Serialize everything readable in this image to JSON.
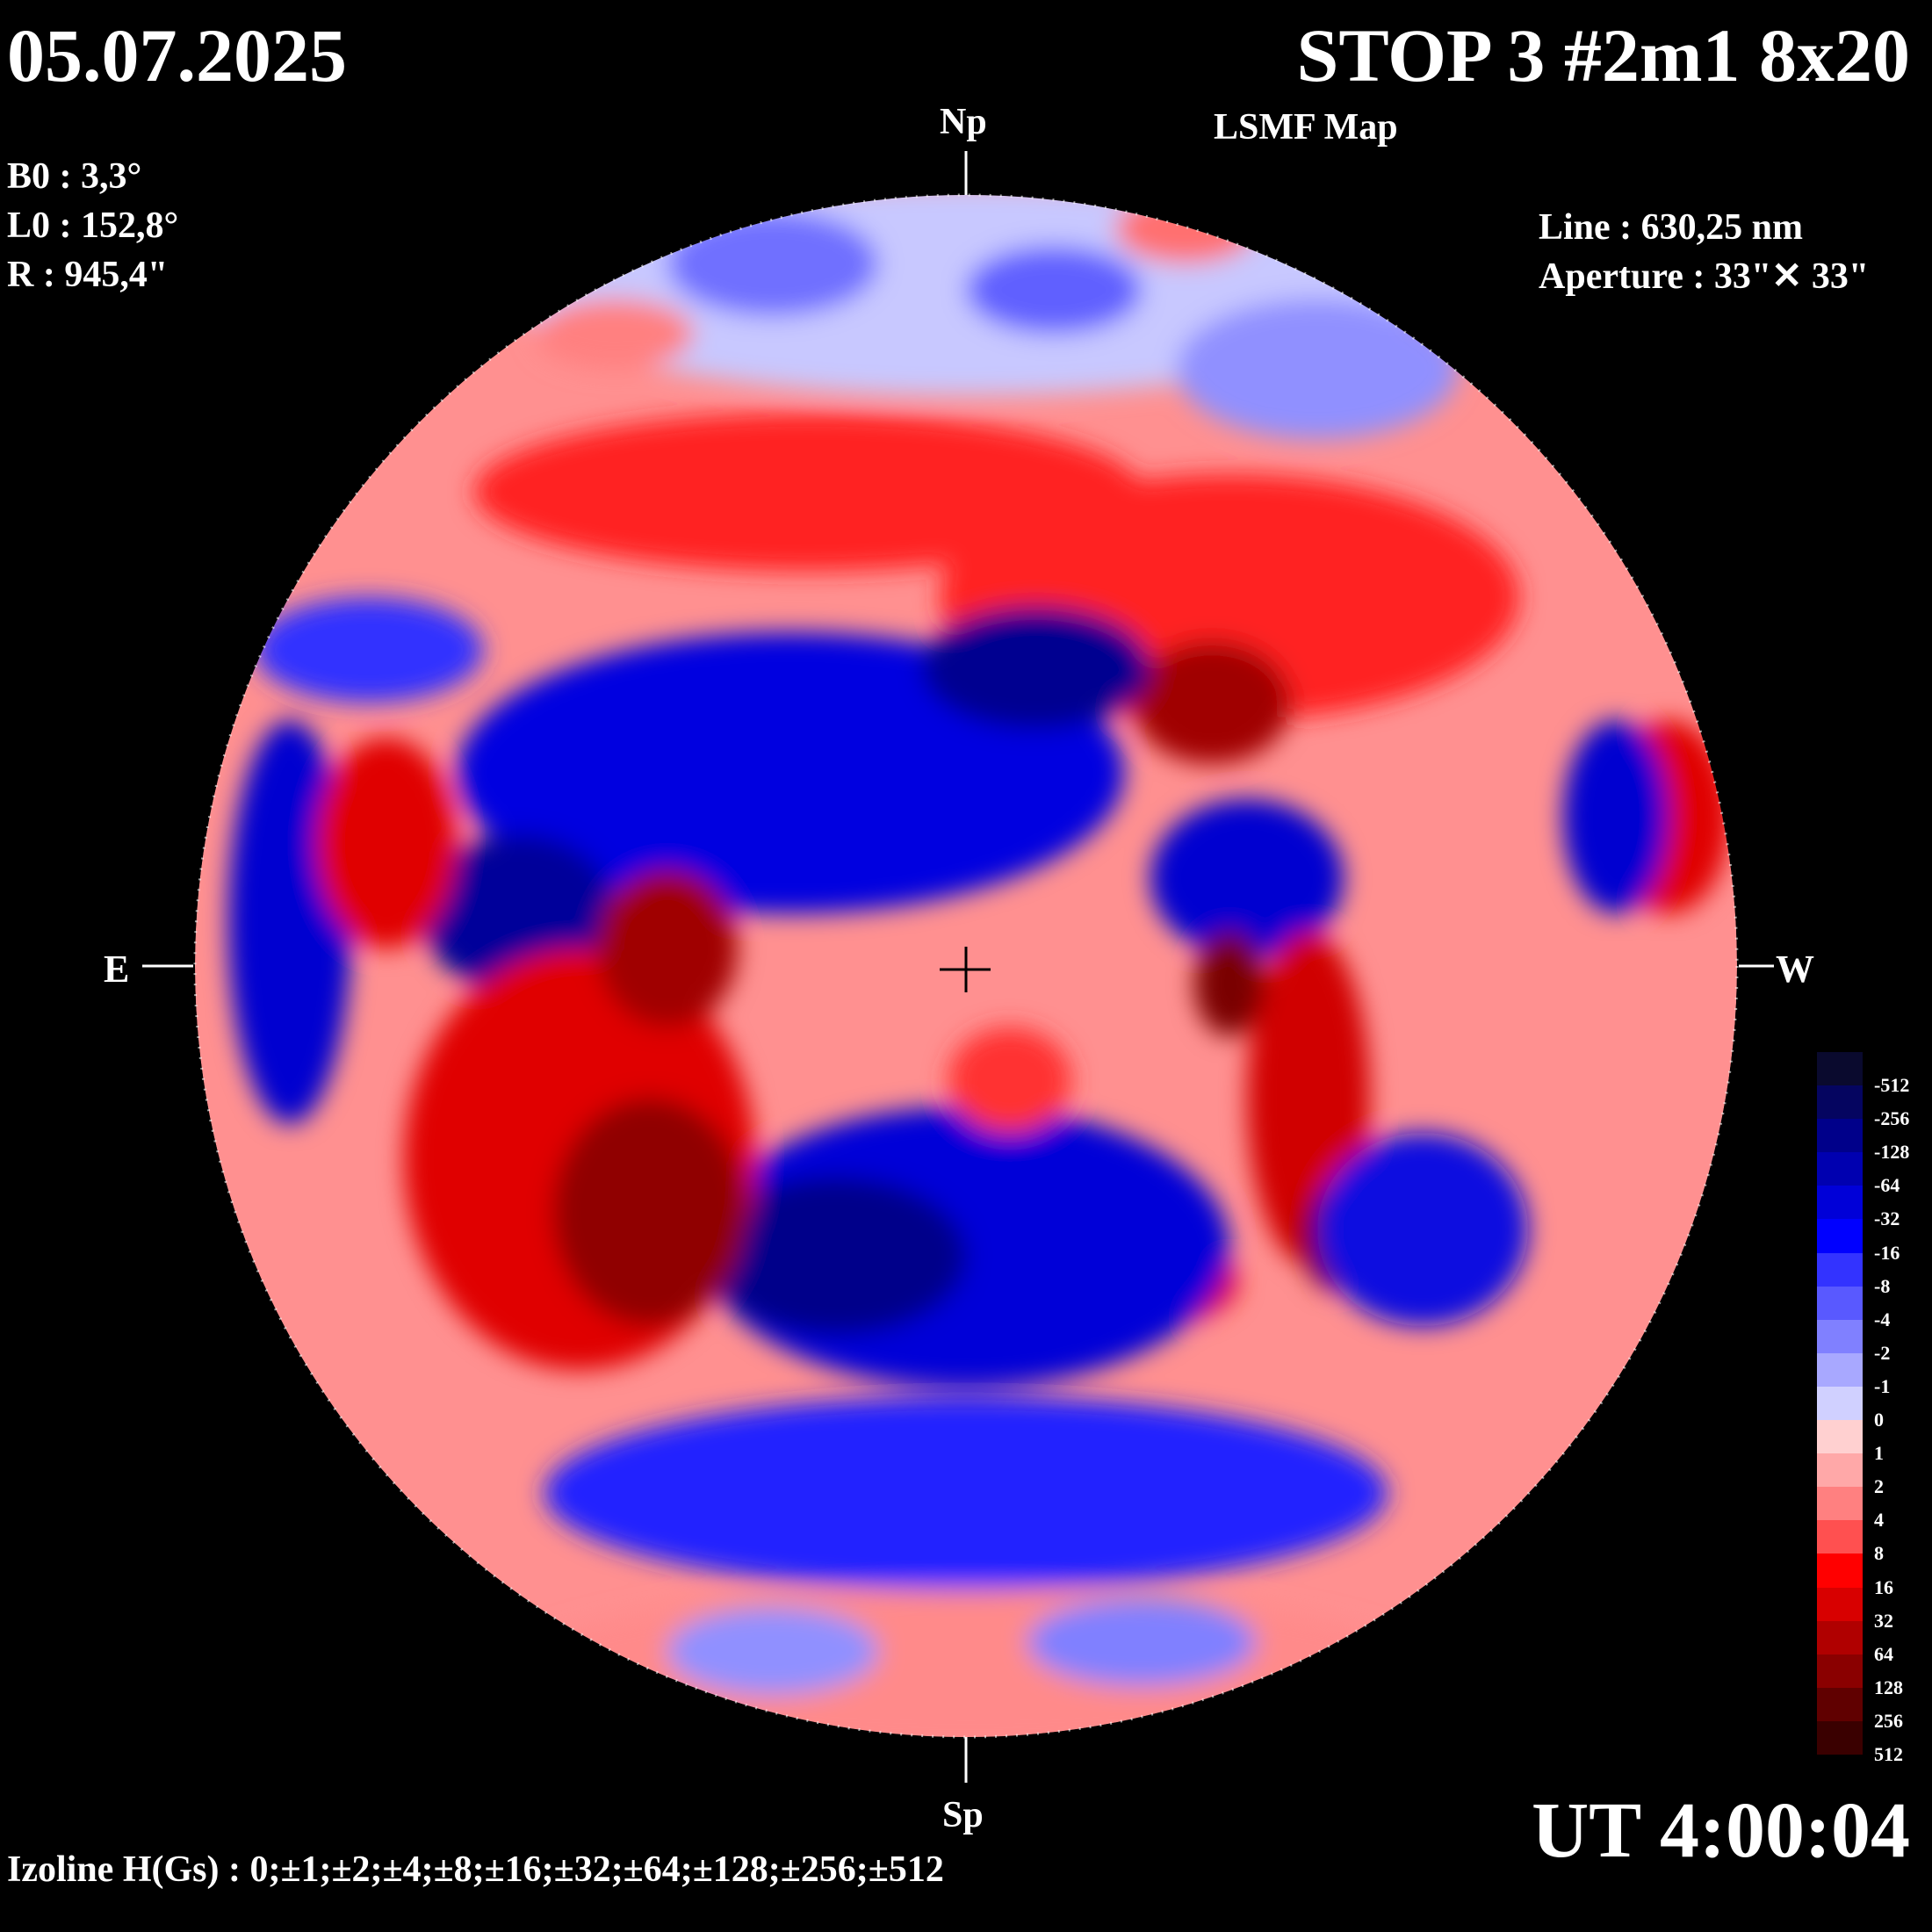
{
  "header": {
    "date": "05.07.2025",
    "title": "STOP 3 #2m1 8x20",
    "subtitle": "LSMF  Map"
  },
  "parameters": {
    "b0": "B0 : 3,3°",
    "l0": "L0 : 152,8°",
    "r": "R  : 945,4\""
  },
  "observation": {
    "line": "Line :  630,25 nm",
    "aperture": "Aperture : 33\"✕ 33\""
  },
  "orientation": {
    "north": "Np",
    "south": "Sp",
    "east": "E",
    "west": "W"
  },
  "time": "UT 4:00:04",
  "isolines": "Izoline H(Gs) : 0;±1;±2;±4;±8;±16;±32;±64;±128;±256;±512",
  "colorbar": {
    "labels": [
      "-512",
      "-256",
      "-128",
      "-64",
      "-32",
      "-16",
      "-8",
      "-4",
      "-2",
      "-1",
      "0",
      "1",
      "2",
      "4",
      "8",
      "16",
      "32",
      "64",
      "128",
      "256",
      "512"
    ],
    "colors": [
      "#0a0a2e",
      "#050560",
      "#00008a",
      "#0000b0",
      "#0000d8",
      "#0000ff",
      "#3333ff",
      "#5959ff",
      "#8080ff",
      "#a8a8ff",
      "#d0d0ff",
      "#ffd0d0",
      "#ffa8a8",
      "#ff8080",
      "#ff5050",
      "#ff0000",
      "#d80000",
      "#b00000",
      "#8a0000",
      "#600000",
      "#3a0000"
    ]
  }
}
